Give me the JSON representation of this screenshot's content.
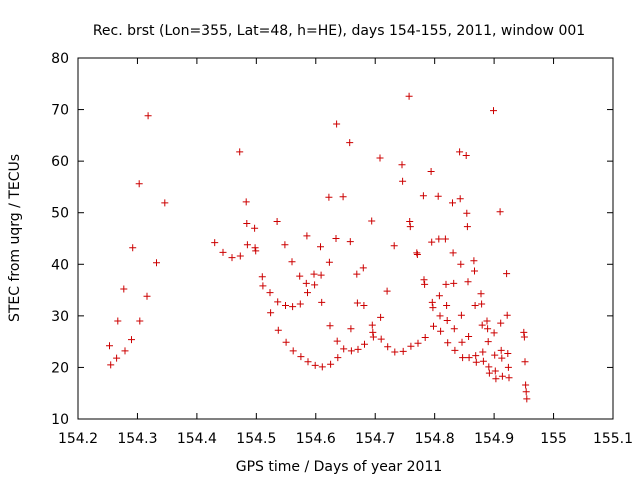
{
  "chart_data": {
    "type": "scatter",
    "title": "Rec. brst (Lon=355, Lat=48, h=HE), days 154-155, 2011, window 001",
    "xlabel": "GPS time / Days of year 2011",
    "ylabel": "STEC from uqrg / TECUs",
    "xlim": [
      154.2,
      155.1
    ],
    "ylim": [
      10,
      80
    ],
    "xticks": [
      "154.2",
      "154.3",
      "154.4",
      "154.5",
      "154.6",
      "154.7",
      "154.8",
      "154.9",
      "155",
      "155.1"
    ],
    "yticks": [
      "10",
      "20",
      "30",
      "40",
      "50",
      "60",
      "70",
      "80"
    ],
    "grid": false,
    "marker": "+",
    "color": "#cc0000",
    "series": [
      {
        "name": "",
        "points": [
          [
            154.253,
            24.2
          ],
          [
            154.255,
            20.5
          ],
          [
            154.265,
            21.8
          ],
          [
            154.267,
            29.0
          ],
          [
            154.277,
            35.2
          ],
          [
            154.279,
            23.2
          ],
          [
            154.29,
            25.4
          ],
          [
            154.292,
            43.2
          ],
          [
            154.303,
            55.6
          ],
          [
            154.304,
            29.0
          ],
          [
            154.316,
            33.8
          ],
          [
            154.318,
            68.8
          ],
          [
            154.332,
            40.3
          ],
          [
            154.346,
            51.9
          ],
          [
            154.43,
            44.2
          ],
          [
            154.444,
            42.3
          ],
          [
            154.459,
            41.3
          ],
          [
            154.472,
            61.8
          ],
          [
            154.473,
            41.6
          ],
          [
            154.483,
            52.1
          ],
          [
            154.484,
            47.9
          ],
          [
            154.485,
            43.8
          ],
          [
            154.497,
            47.0
          ],
          [
            154.498,
            43.2
          ],
          [
            154.499,
            42.6
          ],
          [
            154.51,
            37.6
          ],
          [
            154.511,
            35.8
          ],
          [
            154.523,
            34.5
          ],
          [
            154.524,
            30.6
          ],
          [
            154.535,
            48.3
          ],
          [
            154.536,
            32.7
          ],
          [
            154.537,
            27.2
          ],
          [
            154.548,
            43.8
          ],
          [
            154.549,
            32.0
          ],
          [
            154.55,
            24.9
          ],
          [
            154.56,
            40.5
          ],
          [
            154.561,
            31.8
          ],
          [
            154.562,
            23.2
          ],
          [
            154.573,
            37.7
          ],
          [
            154.574,
            32.3
          ],
          [
            154.575,
            22.1
          ],
          [
            154.584,
            36.3
          ],
          [
            154.585,
            45.5
          ],
          [
            154.586,
            34.5
          ],
          [
            154.587,
            21.1
          ],
          [
            154.597,
            38.1
          ],
          [
            154.598,
            36.0
          ],
          [
            154.599,
            20.4
          ],
          [
            154.608,
            43.4
          ],
          [
            154.609,
            37.9
          ],
          [
            154.61,
            32.6
          ],
          [
            154.611,
            20.1
          ],
          [
            154.622,
            53.0
          ],
          [
            154.623,
            40.4
          ],
          [
            154.624,
            28.1
          ],
          [
            154.625,
            20.6
          ],
          [
            154.634,
            45.0
          ],
          [
            154.635,
            67.2
          ],
          [
            154.636,
            25.1
          ],
          [
            154.637,
            21.9
          ],
          [
            154.646,
            53.1
          ],
          [
            154.647,
            23.6
          ],
          [
            154.657,
            63.6
          ],
          [
            154.658,
            44.4
          ],
          [
            154.659,
            27.5
          ],
          [
            154.66,
            23.2
          ],
          [
            154.669,
            38.1
          ],
          [
            154.67,
            32.5
          ],
          [
            154.671,
            23.5
          ],
          [
            154.68,
            39.3
          ],
          [
            154.681,
            32.0
          ],
          [
            154.682,
            24.5
          ],
          [
            154.694,
            48.4
          ],
          [
            154.695,
            28.2
          ],
          [
            154.696,
            26.8
          ],
          [
            154.697,
            25.9
          ],
          [
            154.708,
            60.6
          ],
          [
            154.709,
            29.7
          ],
          [
            154.71,
            25.5
          ],
          [
            154.72,
            34.8
          ],
          [
            154.721,
            24.0
          ],
          [
            154.732,
            43.6
          ],
          [
            154.733,
            23.0
          ],
          [
            154.745,
            59.3
          ],
          [
            154.746,
            56.1
          ],
          [
            154.747,
            23.1
          ],
          [
            154.757,
            72.6
          ],
          [
            154.758,
            48.3
          ],
          [
            154.759,
            47.3
          ],
          [
            154.76,
            24.1
          ],
          [
            154.77,
            42.2
          ],
          [
            154.771,
            41.9
          ],
          [
            154.772,
            24.7
          ],
          [
            154.781,
            53.3
          ],
          [
            154.782,
            37.0
          ],
          [
            154.783,
            36.1
          ],
          [
            154.784,
            25.8
          ],
          [
            154.794,
            58.0
          ],
          [
            154.795,
            44.3
          ],
          [
            154.796,
            32.6
          ],
          [
            154.797,
            31.6
          ],
          [
            154.798,
            28.0
          ],
          [
            154.806,
            53.2
          ],
          [
            154.807,
            44.9
          ],
          [
            154.808,
            33.9
          ],
          [
            154.809,
            30.0
          ],
          [
            154.81,
            27.0
          ],
          [
            154.818,
            44.9
          ],
          [
            154.819,
            36.1
          ],
          [
            154.82,
            32.0
          ],
          [
            154.821,
            29.1
          ],
          [
            154.822,
            24.8
          ],
          [
            154.83,
            51.9
          ],
          [
            154.831,
            42.2
          ],
          [
            154.832,
            36.3
          ],
          [
            154.833,
            27.5
          ],
          [
            154.834,
            23.3
          ],
          [
            154.842,
            61.8
          ],
          [
            154.843,
            52.7
          ],
          [
            154.844,
            40.0
          ],
          [
            154.845,
            30.1
          ],
          [
            154.846,
            24.9
          ],
          [
            154.847,
            21.9
          ],
          [
            154.853,
            61.1
          ],
          [
            154.854,
            49.9
          ],
          [
            154.855,
            47.3
          ],
          [
            154.856,
            36.6
          ],
          [
            154.857,
            26.0
          ],
          [
            154.858,
            21.9
          ],
          [
            154.866,
            40.7
          ],
          [
            154.867,
            38.7
          ],
          [
            154.868,
            32.0
          ],
          [
            154.869,
            22.3
          ],
          [
            154.87,
            21.0
          ],
          [
            154.878,
            34.3
          ],
          [
            154.879,
            32.3
          ],
          [
            154.88,
            28.2
          ],
          [
            154.881,
            23.0
          ],
          [
            154.882,
            21.2
          ],
          [
            154.888,
            29.0
          ],
          [
            154.889,
            27.5
          ],
          [
            154.89,
            25.0
          ],
          [
            154.891,
            20.1
          ],
          [
            154.892,
            18.9
          ],
          [
            154.899,
            69.8
          ],
          [
            154.9,
            26.7
          ],
          [
            154.901,
            22.4
          ],
          [
            154.902,
            19.3
          ],
          [
            154.903,
            17.8
          ],
          [
            154.91,
            50.2
          ],
          [
            154.911,
            28.6
          ],
          [
            154.912,
            23.3
          ],
          [
            154.913,
            21.8
          ],
          [
            154.914,
            18.3
          ],
          [
            154.921,
            38.2
          ],
          [
            154.922,
            30.1
          ],
          [
            154.923,
            22.7
          ],
          [
            154.924,
            20.0
          ],
          [
            154.925,
            18.0
          ],
          [
            154.95,
            26.8
          ],
          [
            154.951,
            25.9
          ],
          [
            154.952,
            21.1
          ],
          [
            154.953,
            16.6
          ],
          [
            154.954,
            15.3
          ],
          [
            154.955,
            13.9
          ]
        ]
      }
    ]
  }
}
